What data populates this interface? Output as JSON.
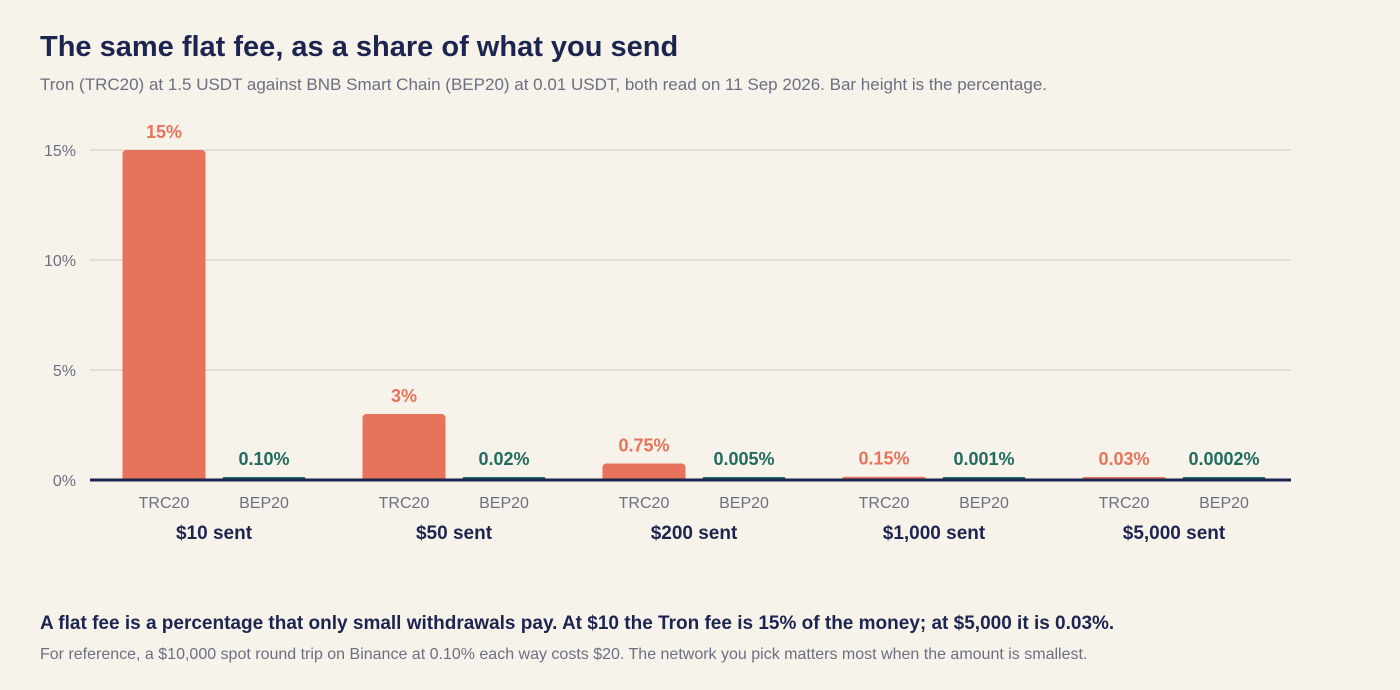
{
  "title": "The same flat fee, as a share of what you send",
  "subtitle": "Tron (TRC20) at 1.5 USDT against BNB Smart Chain (BEP20) at 0.01 USDT, both read on 11 Sep 2026. Bar height is the percentage.",
  "takeaway": "A flat fee is a percentage that only small withdrawals pay. At $10 the Tron fee is 15% of the money; at $5,000 it is 0.03%.",
  "note": "For reference, a $10,000 spot round trip on Binance at 0.10% each way costs $20. The network you pick matters most when the amount is smallest.",
  "colors": {
    "trc20": "#e8735c",
    "bep20": "#1f6b60",
    "grid": "#dcd8cf",
    "axis": "#1c2450"
  },
  "chart_data": {
    "type": "bar",
    "categories": [
      "$10 sent",
      "$50 sent",
      "$200 sent",
      "$1,000 sent",
      "$5,000 sent"
    ],
    "series": [
      {
        "name": "TRC20",
        "values": [
          15,
          3,
          0.75,
          0.15,
          0.03
        ],
        "labels": [
          "15%",
          "3%",
          "0.75%",
          "0.15%",
          "0.03%"
        ]
      },
      {
        "name": "BEP20",
        "values": [
          0.1,
          0.02,
          0.005,
          0.001,
          0.0002
        ],
        "labels": [
          "0.10%",
          "0.02%",
          "0.005%",
          "0.001%",
          "0.0002%"
        ]
      }
    ],
    "ylim": [
      0,
      15
    ],
    "yticks": [
      0,
      5,
      10,
      15
    ],
    "ytick_labels": [
      "0%",
      "5%",
      "10%",
      "15%"
    ],
    "grid": true
  }
}
